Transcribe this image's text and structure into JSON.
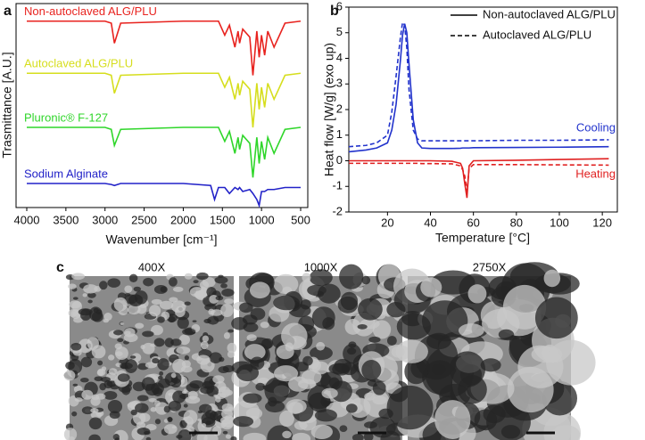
{
  "panel_labels": [
    "a",
    "b",
    "c"
  ],
  "chart_data": [
    {
      "type": "line",
      "x_label": "Wavenumber [cm⁻¹]",
      "y_label": "Trasmittance [A.U.]",
      "xlim": [
        4000,
        500
      ],
      "ylim": [
        0,
        100
      ],
      "xticks": [
        4000,
        3500,
        3000,
        2500,
        2000,
        1500,
        1000,
        500
      ],
      "x": [
        4000,
        3500,
        3000,
        2920,
        2880,
        2800,
        2000,
        1650,
        1600,
        1550,
        1470,
        1410,
        1340,
        1300,
        1280,
        1240,
        1150,
        1110,
        1060,
        1030,
        1000,
        960,
        920,
        840,
        700,
        500
      ],
      "series": [
        {
          "name": "Non-autoclaved ALG/PLU",
          "color": "#e8231f",
          "values": [
            93,
            93,
            93,
            92,
            82,
            92,
            93,
            93,
            93,
            93,
            86,
            91,
            80,
            88,
            82,
            89,
            85,
            66,
            88,
            75,
            86,
            76,
            88,
            80,
            92,
            93
          ]
        },
        {
          "name": "Autoclaved ALG/PLU",
          "color": "#d6de1e",
          "values": [
            67,
            67,
            67,
            66,
            57,
            66,
            67,
            67,
            67,
            67,
            60,
            65,
            54,
            62,
            56,
            63,
            59,
            40,
            62,
            49,
            60,
            50,
            62,
            54,
            66,
            67
          ]
        },
        {
          "name": "Pluronic® F-127",
          "color": "#2fd62a",
          "values": [
            40,
            40,
            40,
            39,
            31,
            39,
            40,
            40,
            40,
            40,
            33,
            38,
            27,
            35,
            29,
            36,
            32,
            15,
            35,
            22,
            33,
            24,
            35,
            27,
            39,
            40
          ]
        },
        {
          "name": "Sodium Alginate",
          "color": "#2222c8",
          "values": [
            12,
            12,
            12,
            11.5,
            11,
            12,
            12,
            11,
            4,
            10,
            10,
            7,
            10,
            9,
            10,
            8,
            9,
            7,
            4,
            1,
            8,
            8,
            9,
            9,
            10,
            10
          ]
        }
      ]
    },
    {
      "type": "line",
      "x_label": "Temperature [°C]",
      "y_label": "Heat flow [W/g] (exo up)",
      "xlim": [
        2,
        127
      ],
      "ylim": [
        -2,
        6
      ],
      "xticks": [
        20,
        40,
        60,
        80,
        100,
        120
      ],
      "yticks": [
        -2,
        -1,
        0,
        1,
        2,
        3,
        4,
        5,
        6
      ],
      "x": [
        2,
        10,
        15,
        20,
        22,
        24,
        26,
        27,
        28,
        29,
        30,
        32,
        34,
        36,
        40,
        50,
        54,
        55,
        56,
        57,
        58,
        60,
        80,
        100,
        123
      ],
      "legend": [
        {
          "name": "Non-autoclaved ALG/PLU",
          "dash": "solid"
        },
        {
          "name": "Autoclaved ALG/PLU",
          "dash": "dashed"
        }
      ],
      "series": [
        {
          "color": "#2233cc",
          "dash": "solid",
          "values": [
            0.35,
            0.42,
            0.5,
            0.7,
            1.2,
            2.2,
            3.9,
            4.9,
            5.35,
            5.0,
            3.8,
            1.6,
            0.7,
            0.5,
            0.48,
            0.48,
            0.49,
            0.5,
            0.5,
            0.5,
            0.5,
            0.51,
            0.52,
            0.53,
            0.55
          ]
        },
        {
          "color": "#2233cc",
          "dash": "dashed",
          "values": [
            0.55,
            0.6,
            0.7,
            1.0,
            1.9,
            3.3,
            4.8,
            5.4,
            5.3,
            4.4,
            2.8,
            1.2,
            0.85,
            0.78,
            0.78,
            0.78,
            0.78,
            0.78,
            0.78,
            0.78,
            0.78,
            0.78,
            0.8,
            0.8,
            0.82
          ]
        },
        {
          "color": "#e02020",
          "dash": "solid",
          "values": [
            0,
            0,
            0,
            0,
            0,
            0,
            0,
            0,
            0,
            0,
            0,
            0,
            0,
            0,
            0,
            -0.02,
            -0.1,
            -0.3,
            -0.9,
            -1.45,
            -0.2,
            0,
            0.02,
            0.05,
            0.08
          ]
        },
        {
          "color": "#e02020",
          "dash": "dashed",
          "values": [
            -0.1,
            -0.1,
            -0.1,
            -0.1,
            -0.1,
            -0.1,
            -0.1,
            -0.1,
            -0.1,
            -0.1,
            -0.1,
            -0.1,
            -0.1,
            -0.11,
            -0.11,
            -0.12,
            -0.2,
            -0.35,
            -0.6,
            -1.2,
            -0.3,
            -0.15,
            -0.15,
            -0.16,
            -0.17
          ]
        }
      ],
      "annotations": [
        {
          "text": "Cooling",
          "color": "#2233cc"
        },
        {
          "text": "Heating",
          "color": "#e02020"
        }
      ]
    }
  ],
  "sem_images": [
    "400X",
    "1000X",
    "2750X"
  ]
}
